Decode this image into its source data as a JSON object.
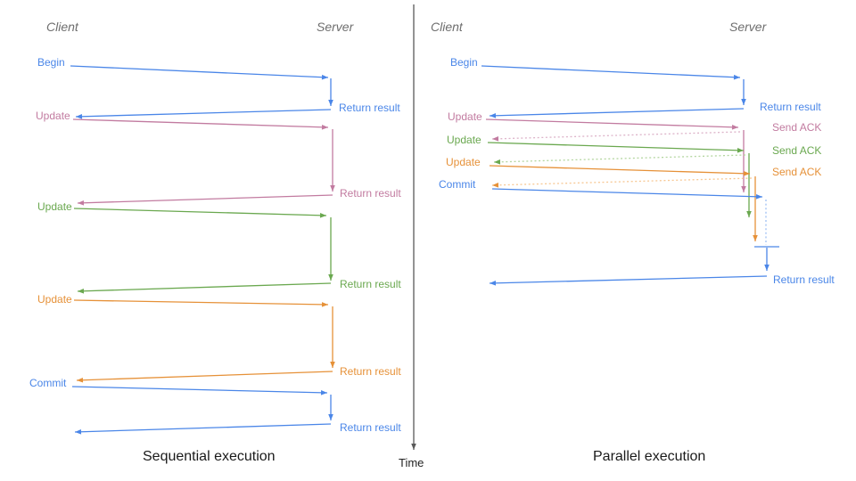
{
  "diagram": {
    "time_label": "Time",
    "colors": {
      "blue": "#4a86e8",
      "pink": "#c27ba0",
      "green": "#6aa84f",
      "orange": "#e69138",
      "blue_light": "#9fc0f5",
      "pink_light": "#ddb3c9",
      "green_light": "#b4d6a0",
      "orange_light": "#f7c894",
      "axis": "#595959",
      "header_text": "#6e6e6e",
      "caption_text": "#1a1a1a"
    },
    "left": {
      "client": "Client",
      "server": "Server",
      "caption": "Sequential execution",
      "messages": [
        {
          "request": "Begin",
          "response": "Return result",
          "color": "blue"
        },
        {
          "request": "Update",
          "response": "Return result",
          "color": "pink"
        },
        {
          "request": "Update",
          "response": "Return result",
          "color": "green"
        },
        {
          "request": "Update",
          "response": "Return result",
          "color": "orange"
        },
        {
          "request": "Commit",
          "response": "Return result",
          "color": "blue"
        }
      ]
    },
    "right": {
      "client": "Client",
      "server": "Server",
      "caption": "Parallel execution",
      "messages": [
        {
          "request": "Begin",
          "response": "Return result",
          "color": "blue"
        },
        {
          "request": "Update",
          "response": "Send ACK",
          "color": "pink"
        },
        {
          "request": "Update",
          "response": "Send ACK",
          "color": "green"
        },
        {
          "request": "Update",
          "response": "Send ACK",
          "color": "orange"
        },
        {
          "request": "Commit",
          "color": "blue"
        }
      ],
      "final_response": "Return result"
    }
  }
}
